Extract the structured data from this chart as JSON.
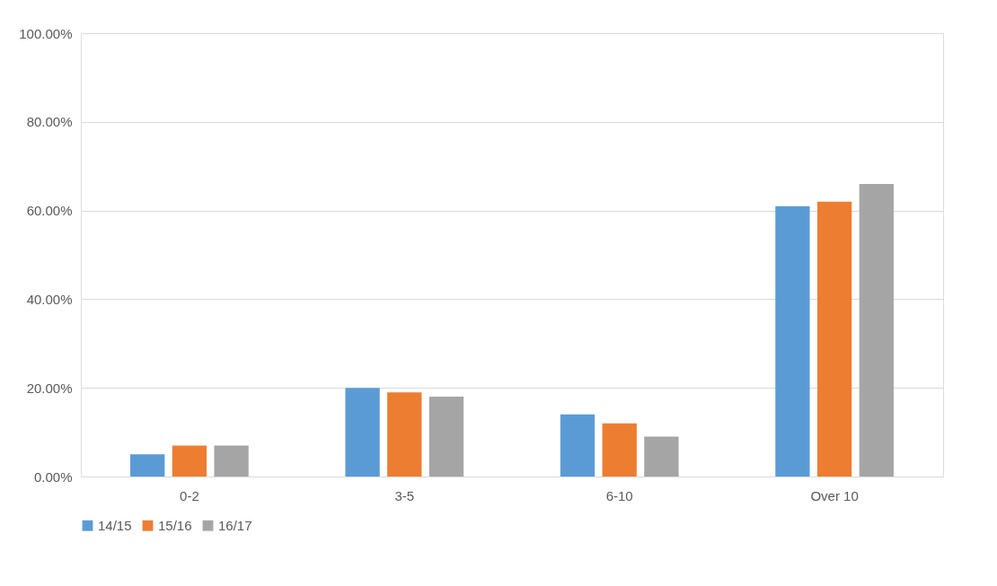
{
  "chart_data": {
    "type": "bar",
    "categories": [
      "0-2",
      "3-5",
      "6-10",
      "Over 10"
    ],
    "series": [
      {
        "name": "14/15",
        "color": "#5b9bd5",
        "values": [
          5,
          20,
          14,
          61
        ]
      },
      {
        "name": "15/16",
        "color": "#ed7d31",
        "values": [
          7,
          19,
          12,
          62
        ]
      },
      {
        "name": "16/17",
        "color": "#a5a5a5",
        "values": [
          7,
          18,
          9,
          66
        ]
      }
    ],
    "ylim": [
      0,
      100
    ],
    "yticks": [
      {
        "value": 0,
        "label": "0.00%"
      },
      {
        "value": 20,
        "label": "20.00%"
      },
      {
        "value": 40,
        "label": "40.00%"
      },
      {
        "value": 60,
        "label": "60.00%"
      },
      {
        "value": 80,
        "label": "80.00%"
      },
      {
        "value": 100,
        "label": "100.00%"
      }
    ],
    "grid": "y",
    "legend": "bottom"
  }
}
